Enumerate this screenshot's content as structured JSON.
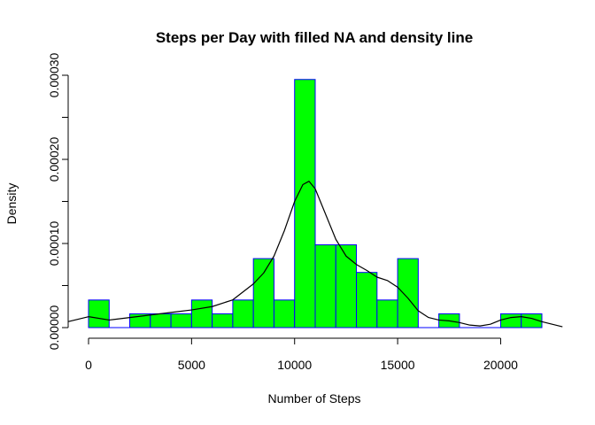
{
  "chart_data": {
    "type": "bar",
    "subtype": "histogram",
    "title": "Steps per Day with filled NA and density line",
    "xlabel": "Number of Steps",
    "ylabel": "Density",
    "bin_width": 1000,
    "bin_starts": [
      0,
      1000,
      2000,
      3000,
      4000,
      5000,
      6000,
      7000,
      8000,
      9000,
      10000,
      11000,
      12000,
      13000,
      14000,
      15000,
      16000,
      17000,
      18000,
      19000,
      20000,
      21000
    ],
    "values": [
      3.28e-05,
      0,
      1.64e-05,
      1.64e-05,
      1.64e-05,
      3.28e-05,
      1.64e-05,
      3.28e-05,
      8.2e-05,
      3.28e-05,
      0.000295,
      9.84e-05,
      9.84e-05,
      6.56e-05,
      3.28e-05,
      8.2e-05,
      0,
      1.64e-05,
      0,
      0,
      1.64e-05,
      1.64e-05
    ],
    "xlim": [
      0,
      22000
    ],
    "ylim": [
      0,
      0.0003
    ],
    "x_ticks": [
      0,
      5000,
      10000,
      15000,
      20000
    ],
    "x_tick_labels": [
      "0",
      "5000",
      "10000",
      "15000",
      "20000"
    ],
    "y_ticks": [
      0,
      0.0001,
      0.0002,
      0.0003
    ],
    "y_tick_labels": [
      "0.00000",
      "0.00010",
      "0.00020",
      "0.00030"
    ],
    "y_minor_ticks": [
      5e-05,
      0.00015,
      0.00025
    ],
    "density_line": {
      "x": [
        -1000,
        0,
        1000,
        2000,
        3000,
        4000,
        5000,
        6000,
        7000,
        8000,
        8500,
        9000,
        9500,
        10000,
        10400,
        10700,
        11000,
        11500,
        12000,
        12500,
        13000,
        13500,
        14000,
        14500,
        15000,
        15500,
        16000,
        16500,
        17000,
        17500,
        18000,
        18500,
        19000,
        19500,
        20000,
        20500,
        21000,
        21500,
        22000,
        23000
      ],
      "y": [
        7e-06,
        1.3e-05,
        9e-06,
        1.2e-05,
        1.5e-05,
        1.8e-05,
        2.1e-05,
        2.5e-05,
        3.3e-05,
        5.2e-05,
        6.5e-05,
        8.5e-05,
        0.000115,
        0.00015,
        0.00017,
        0.000174,
        0.000165,
        0.000135,
        0.000105,
        8.5e-05,
        7.5e-05,
        6.8e-05,
        6e-05,
        5.6e-05,
        4.8e-05,
        3.5e-05,
        2e-05,
        1.2e-05,
        9e-06,
        8e-06,
        6e-06,
        3e-06,
        2e-06,
        4e-06,
        9e-06,
        1.2e-05,
        1.3e-05,
        1.1e-05,
        7e-06,
        1e-06
      ]
    },
    "colors": {
      "bar_fill": "#00ff00",
      "bar_border": "#0000ff",
      "baseline": "#0000ff",
      "density": "#000000"
    },
    "grid": false,
    "legend": "none"
  }
}
